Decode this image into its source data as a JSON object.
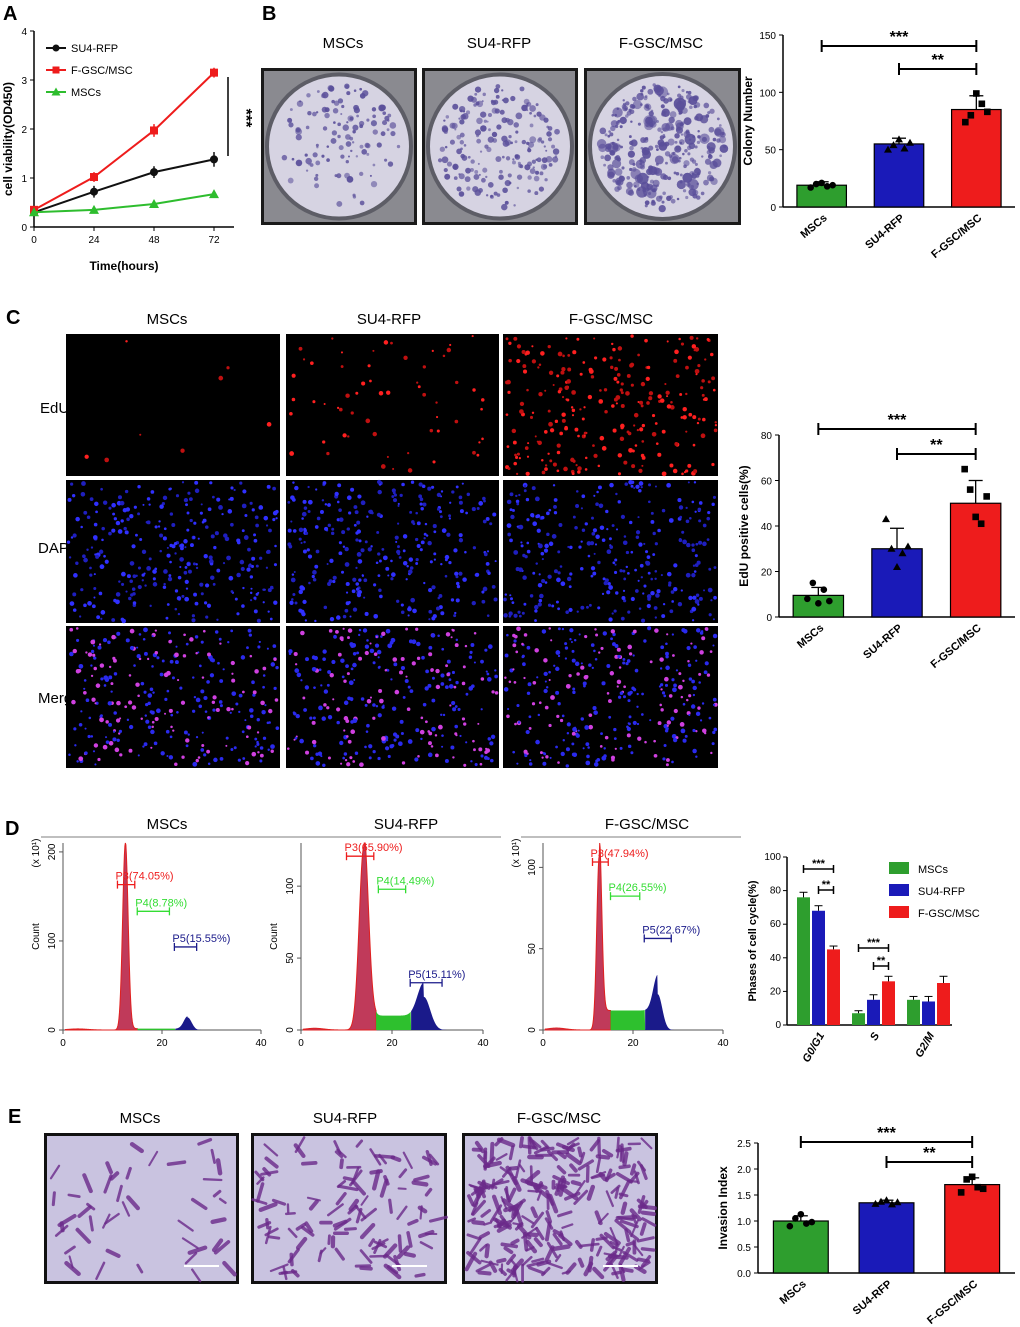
{
  "panels": {
    "A": {
      "letter": "A"
    },
    "B": {
      "letter": "B",
      "image_titles": [
        "MSCs",
        "SU4-RFP",
        "F-GSC/MSC"
      ]
    },
    "C": {
      "letter": "C",
      "col_titles": [
        "MSCs",
        "SU4-RFP",
        "F-GSC/MSC"
      ],
      "row_labels": [
        "EdU",
        "DAPI",
        "Merge"
      ]
    },
    "D": {
      "letter": "D"
    },
    "E": {
      "letter": "E",
      "image_titles": [
        "MSCs",
        "SU4-RFP",
        "F-GSC/MSC"
      ]
    }
  },
  "colors": {
    "green": "#2e9e2e",
    "blue": "#1a1ab8",
    "red": "#ee1c1c",
    "black": "#111111",
    "dish": "#c9c5dc",
    "cyto": "#dcd8ea"
  },
  "chart_data": [
    {
      "id": "A",
      "type": "line",
      "title": "",
      "xlabel": "Time(hours)",
      "ylabel": "cell viability(OD450)",
      "x": [
        0,
        24,
        48,
        72
      ],
      "xticks": [
        "0",
        "24",
        "48",
        "72"
      ],
      "yticks": [
        "0",
        "1",
        "2",
        "3",
        "4"
      ],
      "xlim": [
        0,
        80
      ],
      "ylim": [
        0,
        4
      ],
      "series": [
        {
          "name": "SU4-RFP",
          "color": "#111111",
          "marker": "circle",
          "values": [
            0.3,
            0.72,
            1.12,
            1.38
          ],
          "err": [
            0.05,
            0.12,
            0.12,
            0.15
          ]
        },
        {
          "name": "F-GSC/MSC",
          "color": "#ee1c1c",
          "marker": "square",
          "values": [
            0.35,
            1.02,
            1.97,
            3.15
          ],
          "err": [
            0.05,
            0.1,
            0.13,
            0.1
          ]
        },
        {
          "name": "MSCs",
          "color": "#2ebd2e",
          "marker": "triangle",
          "values": [
            0.3,
            0.35,
            0.47,
            0.67
          ],
          "err": [
            0.03,
            0.04,
            0.06,
            0.07
          ]
        }
      ],
      "annotation": "***"
    },
    {
      "id": "B",
      "type": "bar",
      "title": "",
      "ylabel": "Colony Number",
      "xlabel": "",
      "categories": [
        "MSCs",
        "SU4-RFP",
        "F-GSC/MSC"
      ],
      "values": [
        19,
        55,
        85
      ],
      "err": [
        3,
        5,
        12
      ],
      "colors": [
        "#2e9e2e",
        "#1a1ab8",
        "#ee1c1c"
      ],
      "points": [
        [
          17,
          20,
          21,
          18,
          19
        ],
        [
          50,
          54,
          59,
          51,
          56
        ],
        [
          74,
          80,
          99,
          90,
          83
        ]
      ],
      "yticks": [
        "0",
        "50",
        "100",
        "150"
      ],
      "ylim": [
        0,
        150
      ],
      "significance": [
        {
          "from": 0,
          "to": 2,
          "label": "***"
        },
        {
          "from": 1,
          "to": 2,
          "label": "**"
        }
      ]
    },
    {
      "id": "C",
      "type": "bar",
      "title": "",
      "ylabel": "EdU positive cells(%)",
      "xlabel": "",
      "categories": [
        "MSCs",
        "SU4-RFP",
        "F-GSC/MSC"
      ],
      "values": [
        9.5,
        30,
        50
      ],
      "err": [
        3.5,
        9,
        10
      ],
      "colors": [
        "#2e9e2e",
        "#1a1ab8",
        "#ee1c1c"
      ],
      "points": [
        [
          8,
          15,
          6,
          12,
          7
        ],
        [
          43,
          30,
          22,
          28,
          31
        ],
        [
          65,
          56,
          44,
          41,
          53
        ]
      ],
      "yticks": [
        "0",
        "20",
        "40",
        "60",
        "80"
      ],
      "ylim": [
        0,
        80
      ],
      "significance": [
        {
          "from": 0,
          "to": 2,
          "label": "***"
        },
        {
          "from": 1,
          "to": 2,
          "label": "**"
        }
      ]
    },
    {
      "id": "D-MSCs",
      "type": "area",
      "title": "MSCs",
      "ylabel": "Count",
      "yunit": "(x 10¹)",
      "xticks": [
        "0",
        "20",
        "40"
      ],
      "xlim": [
        0,
        40
      ],
      "yticks": [
        "0",
        "100",
        "200"
      ],
      "ylim": [
        0,
        210
      ],
      "gates": [
        {
          "name": "P3(74.05%)",
          "color": "#ee1c1c",
          "from": 11,
          "to": 14.5,
          "y": 170
        },
        {
          "name": "P4(8.78%)",
          "color": "#33dd33",
          "from": 15,
          "to": 21.5,
          "y": 140
        },
        {
          "name": "P5(15.55%)",
          "color": "#1a1a8a",
          "from": 22.5,
          "to": 27,
          "y": 100
        }
      ],
      "peaks": {
        "g1": {
          "x": 12.6,
          "h": 210,
          "w": 0.55
        },
        "s": 1.5,
        "g2": {
          "x": 25.2,
          "h": 14,
          "w": 0.8
        }
      }
    },
    {
      "id": "D-SU4-RFP",
      "type": "area",
      "title": "SU4-RFP",
      "ylabel": "Count",
      "yunit": "",
      "xticks": [
        "0",
        "20",
        "40"
      ],
      "xlim": [
        0,
        40
      ],
      "yticks": [
        "0",
        "50",
        "100"
      ],
      "ylim": [
        0,
        130
      ],
      "gates": [
        {
          "name": "P3(65.90%)",
          "color": "#ee1c1c",
          "from": 10,
          "to": 16,
          "y": 125
        },
        {
          "name": "P4(14.49%)",
          "color": "#33dd33",
          "from": 17,
          "to": 23,
          "y": 102
        },
        {
          "name": "P5(15.11%)",
          "color": "#1a1a8a",
          "from": 24,
          "to": 31,
          "y": 37
        }
      ],
      "peaks": {
        "g1": {
          "x": 13.8,
          "h": 127,
          "w": 1.0
        },
        "s": 10,
        "g2": {
          "x": 27,
          "h": 23,
          "w": 1.4
        }
      }
    },
    {
      "id": "D-F-GSC/MSC",
      "type": "area",
      "title": "F-GSC/MSC",
      "ylabel": "",
      "yunit": "(x 10¹)",
      "xticks": [
        "0",
        "20",
        "40"
      ],
      "xlim": [
        0,
        40
      ],
      "yticks": [
        "0",
        "50",
        "100"
      ],
      "ylim": [
        0,
        115
      ],
      "gates": [
        {
          "name": "P3(47.94%)",
          "color": "#ee1c1c",
          "from": 11,
          "to": 14.5,
          "y": 107
        },
        {
          "name": "P4(26.55%)",
          "color": "#33dd33",
          "from": 15,
          "to": 21.5,
          "y": 86
        },
        {
          "name": "P5(22.67%)",
          "color": "#1a1a8a",
          "from": 22.5,
          "to": 28.5,
          "y": 60
        }
      ],
      "peaks": {
        "g1": {
          "x": 12.5,
          "h": 107,
          "w": 0.55
        },
        "s": 12,
        "g2": {
          "x": 25.5,
          "h": 22,
          "w": 1.0
        }
      }
    },
    {
      "id": "D-bar",
      "type": "bar",
      "title": "",
      "ylabel": "Phases of cell cycle(%)",
      "xlabel": "",
      "categories": [
        "G0/G1",
        "S",
        "G2/M"
      ],
      "series": [
        {
          "name": "MSCs",
          "color": "#2e9e2e",
          "values": [
            76,
            7,
            15
          ],
          "err": [
            3,
            1.5,
            2
          ]
        },
        {
          "name": "SU4-RFP",
          "color": "#1a1ab8",
          "values": [
            68,
            15,
            14
          ],
          "err": [
            3,
            3,
            3
          ]
        },
        {
          "name": "F-GSC/MSC",
          "color": "#ee1c1c",
          "values": [
            45,
            26,
            25
          ],
          "err": [
            2,
            3,
            4
          ]
        }
      ],
      "yticks": [
        "0",
        "20",
        "40",
        "60",
        "80",
        "100"
      ],
      "ylim": [
        0,
        100
      ],
      "significance": [
        {
          "group": 0,
          "from": 0,
          "to": 2,
          "label": "***"
        },
        {
          "group": 0,
          "from": 1,
          "to": 2,
          "label": "**"
        },
        {
          "group": 1,
          "from": 0,
          "to": 2,
          "label": "***"
        },
        {
          "group": 1,
          "from": 1,
          "to": 2,
          "label": "**"
        }
      ]
    },
    {
      "id": "E",
      "type": "bar",
      "title": "",
      "ylabel": "Invasion Index",
      "xlabel": "",
      "categories": [
        "MSCs",
        "SU4-RFP",
        "F-GSC/MSC"
      ],
      "values": [
        1.0,
        1.35,
        1.7
      ],
      "err": [
        0.1,
        0.05,
        0.13
      ],
      "colors": [
        "#2e9e2e",
        "#1a1ab8",
        "#ee1c1c"
      ],
      "points": [
        [
          0.9,
          1.05,
          1.13,
          0.95,
          0.98
        ],
        [
          1.33,
          1.37,
          1.4,
          1.32,
          1.36
        ],
        [
          1.55,
          1.8,
          1.85,
          1.65,
          1.62
        ]
      ],
      "yticks": [
        "0.0",
        "0.5",
        "1.0",
        "1.5",
        "2.0",
        "2.5"
      ],
      "ylim": [
        0,
        2.5
      ],
      "significance": [
        {
          "from": 0,
          "to": 2,
          "label": "***"
        },
        {
          "from": 1,
          "to": 2,
          "label": "**"
        }
      ]
    }
  ]
}
